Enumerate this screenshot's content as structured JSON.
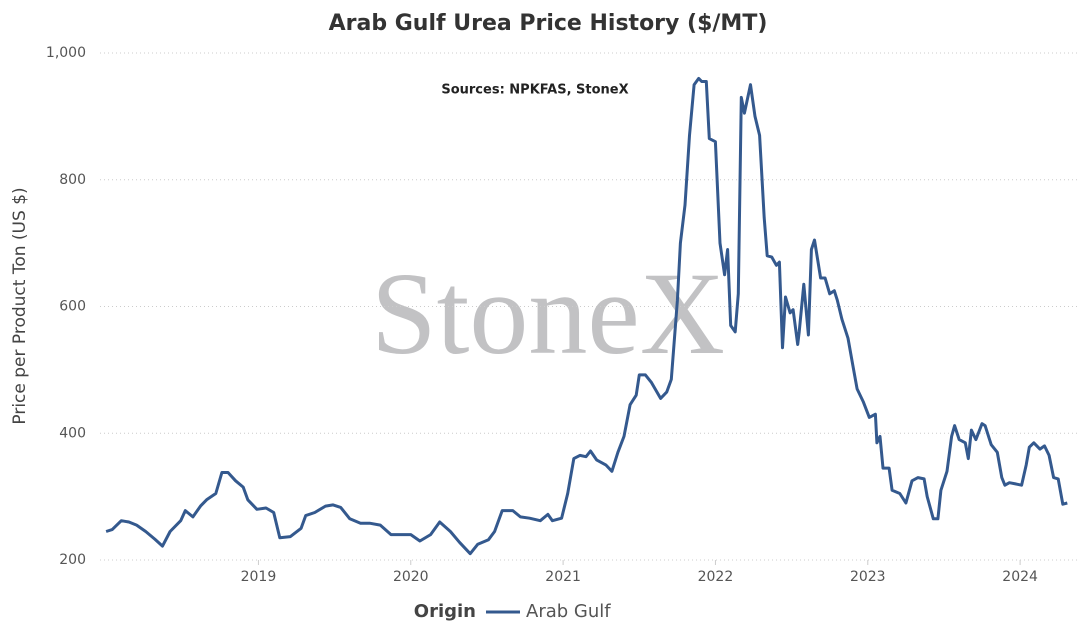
{
  "chart_data": {
    "type": "line",
    "title": "Arab Gulf Urea Price History ($/MT)",
    "annotation": "Sources: NPKFAS, StoneX",
    "watermark": "StoneX",
    "y_label": "Price per Product Ton (US $)",
    "legend_title": "Origin",
    "ylim": [
      200,
      1000
    ],
    "yticks": [
      200,
      400,
      600,
      800,
      {
        "value": 1000,
        "label": "1,000"
      }
    ],
    "xlim": [
      2017.96,
      2024.38
    ],
    "xticks": [
      2019,
      2020,
      2021,
      2022,
      2023,
      2024
    ],
    "grid": true,
    "x": [
      2018.0,
      2018.04,
      2018.1,
      2018.15,
      2018.2,
      2018.26,
      2018.32,
      2018.37,
      2018.42,
      2018.49,
      2018.52,
      2018.57,
      2018.62,
      2018.66,
      2018.72,
      2018.76,
      2018.8,
      2018.85,
      2018.9,
      2018.93,
      2018.99,
      2019.05,
      2019.1,
      2019.14,
      2019.21,
      2019.28,
      2019.31,
      2019.37,
      2019.44,
      2019.49,
      2019.54,
      2019.6,
      2019.67,
      2019.73,
      2019.8,
      2019.87,
      2019.93,
      2020.0,
      2020.06,
      2020.13,
      2020.19,
      2020.26,
      2020.32,
      2020.39,
      2020.44,
      2020.51,
      2020.55,
      2020.6,
      2020.67,
      2020.72,
      2020.78,
      2020.85,
      2020.9,
      2020.93,
      2020.99,
      2021.03,
      2021.07,
      2021.11,
      2021.15,
      2021.18,
      2021.22,
      2021.28,
      2021.32,
      2021.36,
      2021.4,
      2021.44,
      2021.48,
      2021.5,
      2021.54,
      2021.58,
      2021.64,
      2021.68,
      2021.71,
      2021.75,
      2021.77,
      2021.8,
      2021.83,
      2021.86,
      2021.89,
      2021.91,
      2021.94,
      2021.96,
      2022.0,
      2022.03,
      2022.06,
      2022.08,
      2022.1,
      2022.13,
      2022.15,
      2022.17,
      2022.19,
      2022.23,
      2022.26,
      2022.29,
      2022.32,
      2022.34,
      2022.37,
      2022.4,
      2022.42,
      2022.44,
      2022.46,
      2022.49,
      2022.51,
      2022.54,
      2022.55,
      2022.58,
      2022.61,
      2022.63,
      2022.65,
      2022.69,
      2022.72,
      2022.75,
      2022.78,
      2022.8,
      2022.83,
      2022.87,
      2022.9,
      2022.93,
      2022.97,
      2023.01,
      2023.05,
      2023.06,
      2023.08,
      2023.1,
      2023.14,
      2023.16,
      2023.21,
      2023.25,
      2023.29,
      2023.33,
      2023.37,
      2023.39,
      2023.43,
      2023.46,
      2023.48,
      2023.52,
      2023.55,
      2023.57,
      2023.6,
      2023.64,
      2023.66,
      2023.68,
      2023.71,
      2023.75,
      2023.77,
      2023.81,
      2023.85,
      2023.88,
      2023.9,
      2023.93,
      2023.97,
      2024.01,
      2024.04,
      2024.06,
      2024.09,
      2024.13,
      2024.16,
      2024.19,
      2024.22,
      2024.25,
      2024.28,
      2024.31
    ],
    "series": [
      {
        "name": "Arab Gulf",
        "color": "#34598e",
        "values": [
          245,
          248,
          262,
          260,
          255,
          245,
          233,
          222,
          245,
          262,
          278,
          268,
          285,
          295,
          305,
          338,
          338,
          325,
          315,
          295,
          280,
          282,
          275,
          235,
          237,
          250,
          270,
          275,
          285,
          287,
          283,
          265,
          258,
          258,
          255,
          240,
          240,
          240,
          230,
          240,
          260,
          245,
          228,
          210,
          225,
          232,
          245,
          278,
          278,
          268,
          266,
          262,
          272,
          262,
          266,
          305,
          360,
          365,
          363,
          372,
          358,
          350,
          340,
          370,
          395,
          445,
          460,
          492,
          492,
          480,
          455,
          465,
          485,
          610,
          700,
          760,
          870,
          950,
          960,
          955,
          955,
          865,
          860,
          700,
          650,
          690,
          570,
          560,
          620,
          930,
          905,
          950,
          900,
          870,
          740,
          680,
          678,
          665,
          670,
          535,
          615,
          590,
          595,
          540,
          560,
          635,
          555,
          690,
          705,
          645,
          645,
          620,
          625,
          610,
          580,
          550,
          510,
          470,
          450,
          425,
          430,
          385,
          395,
          345,
          345,
          310,
          305,
          290,
          325,
          330,
          328,
          300,
          265,
          265,
          310,
          340,
          395,
          412,
          390,
          385,
          360,
          405,
          390,
          415,
          412,
          382,
          370,
          330,
          318,
          322,
          320,
          318,
          350,
          378,
          385,
          375,
          380,
          365,
          330,
          328,
          288,
          290
        ]
      }
    ]
  }
}
